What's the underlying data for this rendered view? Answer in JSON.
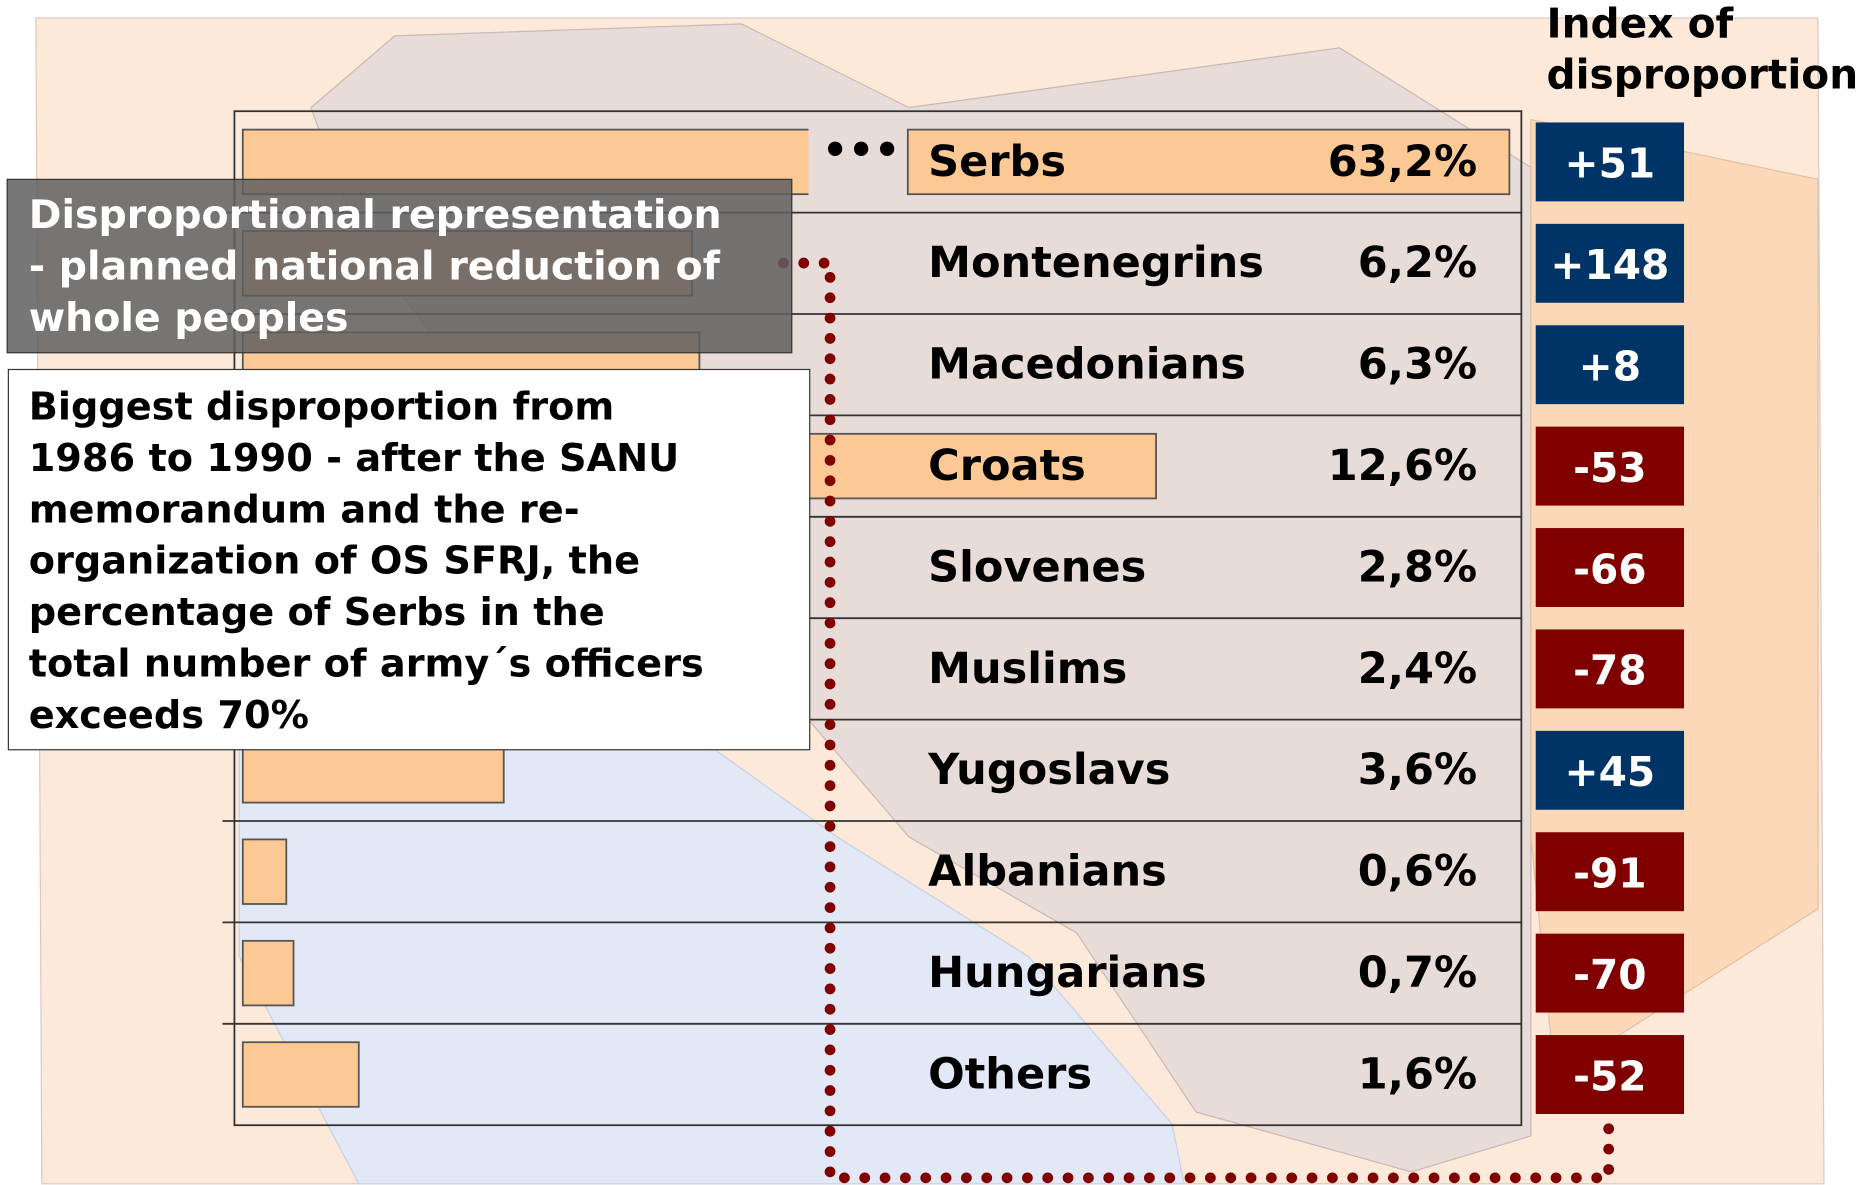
{
  "chart_data": {
    "type": "bar",
    "categories": [
      "Serbs",
      "Montenegrins",
      "Macedonians",
      "Croats",
      "Slovenes",
      "Muslims",
      "Yugoslavs",
      "Albanians",
      "Hungarians",
      "Others"
    ],
    "values": [
      63.2,
      6.2,
      6.3,
      12.6,
      2.8,
      2.4,
      3.6,
      0.6,
      0.7,
      1.6
    ],
    "value_labels": [
      "63,2%",
      "6,2%",
      "6,3%",
      "12,6%",
      "2,8%",
      "2,4%",
      "3,6%",
      "0,6%",
      "0,7%",
      "1,6%"
    ],
    "color": "#fcc994",
    "index": {
      "title": [
        "Index of",
        "disproportion"
      ],
      "values": [
        51,
        148,
        8,
        -53,
        -66,
        -78,
        45,
        -91,
        -70,
        -52
      ],
      "value_labels": [
        "+51",
        "+148",
        "+8",
        "-53",
        "-66",
        "-78",
        "+45",
        "-91",
        "-70",
        "-52"
      ],
      "positive_color": "#003366",
      "negative_color": "#800000"
    },
    "annotations": [
      {
        "lines": [
          "Disproportional representation",
          "- planned national reduction of",
          "whole peoples"
        ]
      },
      {
        "lines": [
          "Biggest disproportion from",
          "1986 to 1990 - after the SANU",
          "memorandum and the re-",
          "organization of OS SFRJ, the",
          "percentage of Serbs in the",
          "total number of army´s officers",
          "exceeds 70%"
        ]
      }
    ]
  }
}
